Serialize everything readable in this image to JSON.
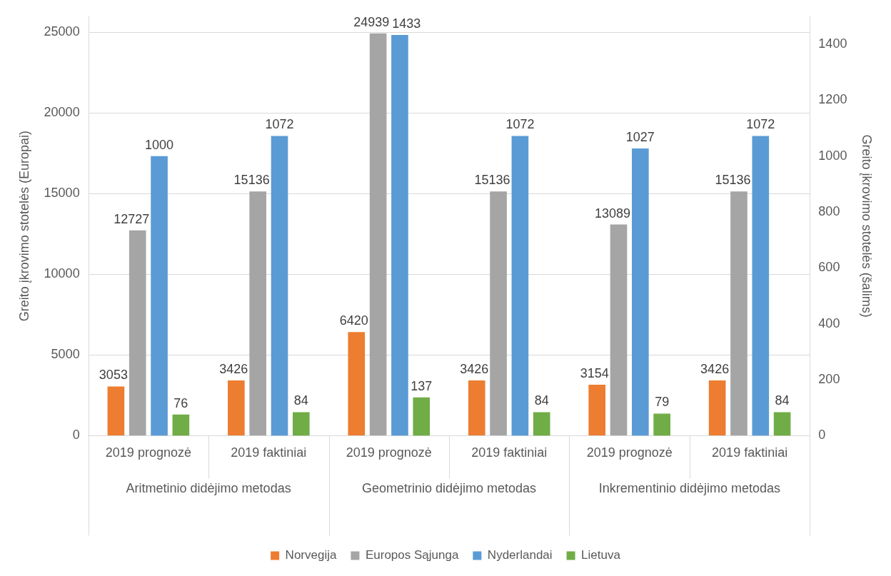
{
  "chart_data": {
    "type": "bar",
    "ylabel": "Greito įkrovimo stotelės (Europai)",
    "y2label": "Greito įkrovimo stotelės (šalims)",
    "categories": [
      "2019 prognozė",
      "2019 faktiniai",
      "2019 prognozė",
      "2019 faktiniai",
      "2019 prognozė",
      "2019 faktiniai"
    ],
    "annotations": [
      "Aritmetinio didėjimo metodas",
      "Geometrinio didėjimo metodas",
      "Inkrementinio didėjimo metodas"
    ],
    "series": [
      {
        "name": "Norvegija",
        "color": "#ed7d31",
        "values": [
          3053,
          3426,
          6420,
          3426,
          3154,
          3426
        ]
      },
      {
        "name": "Europos Sąjunga",
        "color": "#a5a5a5",
        "values": [
          12727,
          15136,
          24939,
          15136,
          13089,
          15136
        ]
      },
      {
        "name": "Nyderlandai",
        "color": "#5b9bd5",
        "axis": "y2",
        "values": [
          1000,
          1072,
          1433,
          1072,
          1027,
          1072
        ]
      },
      {
        "name": "Lietuva",
        "color": "#70ad47",
        "axis": "y2",
        "values": [
          76,
          84,
          137,
          84,
          79,
          84
        ]
      }
    ],
    "ylim": [
      0,
      26000
    ],
    "yticks": [
      0,
      5000,
      10000,
      15000,
      20000,
      25000
    ],
    "y2lim": [
      0,
      1500
    ],
    "y2ticks": [
      0,
      200,
      400,
      600,
      800,
      1000,
      1200,
      1400
    ],
    "data_labels": true,
    "grid": "y",
    "legend": "bottom"
  }
}
